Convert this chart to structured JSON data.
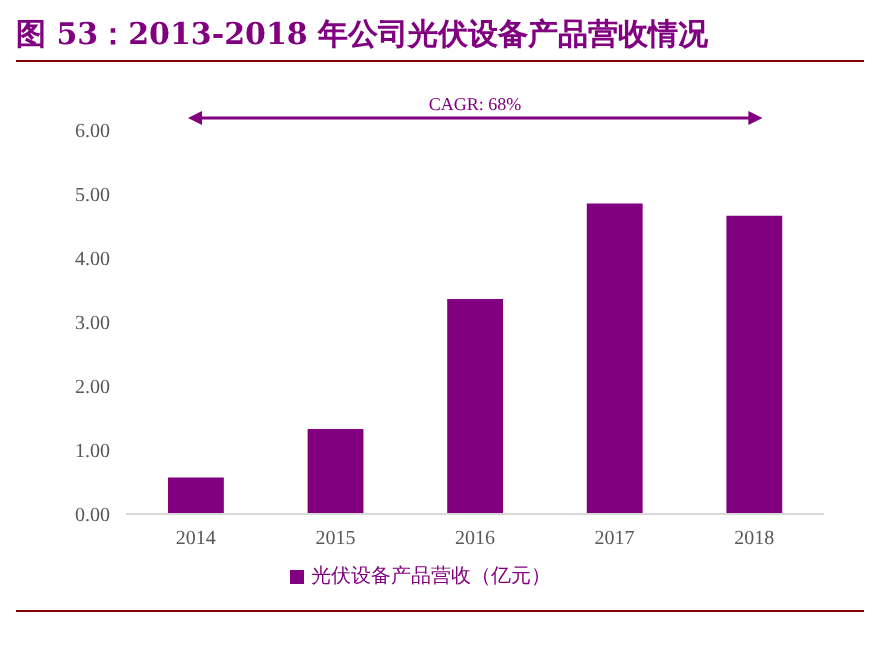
{
  "chart_data": {
    "type": "bar",
    "title": "图 53：2013-2018 年公司光伏设备产品营收情况",
    "categories": [
      "2014",
      "2015",
      "2016",
      "2017",
      "2018"
    ],
    "series": [
      {
        "name": "光伏设备产品营收（亿元）",
        "color": "#800080",
        "values": [
          0.57,
          1.33,
          3.36,
          4.85,
          4.66
        ]
      }
    ],
    "ylim": [
      0,
      6
    ],
    "yticks": [
      {
        "value": 0,
        "label": "0.00"
      },
      {
        "value": 1,
        "label": "1.00"
      },
      {
        "value": 2,
        "label": "2.00"
      },
      {
        "value": 3,
        "label": "3.00"
      },
      {
        "value": 4,
        "label": "4.00"
      },
      {
        "value": 5,
        "label": "5.00"
      },
      {
        "value": 6,
        "label": "6.00"
      }
    ],
    "annotations": [
      "CAGR: 68%"
    ],
    "grid": false,
    "legend": "bottom"
  }
}
